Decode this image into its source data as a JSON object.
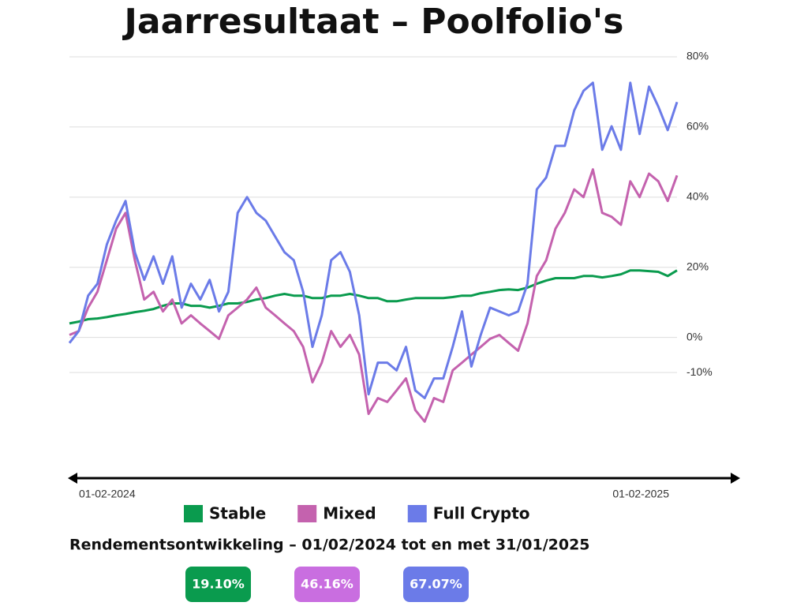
{
  "chart_data": {
    "type": "line",
    "title": "Jaarresultaat – Poolfolio's",
    "subtitle": "Rendementsontwikkeling – 01/02/2024 tot en met 31/01/2025",
    "categories": [
      "01-02-2024",
      null,
      null,
      null,
      null,
      null,
      null,
      null,
      null,
      null,
      null,
      null,
      null,
      null,
      null,
      null,
      null,
      null,
      null,
      null,
      null,
      null,
      null,
      null,
      null,
      null,
      null,
      null,
      null,
      null,
      null,
      null,
      null,
      null,
      null,
      null,
      null,
      null,
      null,
      null,
      null,
      null,
      null,
      null,
      null,
      null,
      null,
      null,
      null,
      null,
      null,
      null,
      null,
      null,
      null,
      null,
      null,
      null,
      null,
      null,
      null,
      null,
      null,
      null,
      null,
      "01-02-2025"
    ],
    "ylim": [
      -30,
      80
    ],
    "yticks": [
      {
        "value": -10,
        "label": "-10%"
      },
      {
        "value": 0,
        "label": "0%"
      },
      {
        "value": 20,
        "label": "20%"
      },
      {
        "value": 40,
        "label": "40%"
      },
      {
        "value": 60,
        "label": "60%"
      },
      {
        "value": 80,
        "label": "80%"
      }
    ],
    "grid": true,
    "series": [
      {
        "name": "Stable",
        "color": "#0a9b4e",
        "values": [
          4.0,
          4.5,
          5.2,
          5.4,
          5.8,
          6.3,
          6.7,
          7.2,
          7.6,
          8.1,
          9.0,
          9.7,
          9.7,
          9.0,
          9.0,
          8.5,
          9.0,
          9.7,
          9.7,
          10.1,
          10.8,
          11.2,
          11.9,
          12.4,
          11.9,
          11.9,
          11.2,
          11.2,
          11.9,
          11.9,
          12.4,
          11.9,
          11.2,
          11.2,
          10.3,
          10.3,
          10.8,
          11.2,
          11.2,
          11.2,
          11.2,
          11.5,
          11.9,
          11.9,
          12.6,
          13.0,
          13.5,
          13.7,
          13.5,
          14.2,
          15.3,
          16.2,
          16.9,
          16.9,
          16.9,
          17.5,
          17.5,
          17.1,
          17.5,
          18.0,
          19.1,
          19.1,
          18.9,
          18.7,
          17.5,
          19.1
        ]
      },
      {
        "name": "Mixed",
        "color": "#c462ae",
        "values": [
          0.7,
          1.8,
          8.5,
          13.0,
          22.0,
          31.0,
          35.5,
          22.0,
          10.8,
          13.0,
          7.4,
          10.8,
          4.0,
          6.3,
          4.0,
          1.8,
          -0.4,
          6.3,
          8.5,
          10.8,
          14.2,
          8.5,
          6.3,
          4.0,
          1.8,
          -2.7,
          -12.8,
          -7.2,
          1.8,
          -2.7,
          0.7,
          -4.9,
          -21.8,
          -17.3,
          -18.4,
          -15.1,
          -11.7,
          -20.7,
          -24.0,
          -17.3,
          -18.4,
          -9.4,
          -7.2,
          -4.9,
          -2.7,
          -0.4,
          0.7,
          -1.6,
          -3.8,
          4.0,
          17.5,
          22.0,
          31.0,
          35.5,
          42.2,
          40.0,
          47.9,
          35.5,
          34.4,
          32.1,
          44.5,
          40.0,
          46.7,
          44.5,
          38.9,
          46.2
        ]
      },
      {
        "name": "Full Crypto",
        "color": "#6b7be8",
        "values": [
          -1.6,
          1.8,
          11.9,
          15.3,
          26.5,
          33.3,
          38.9,
          24.3,
          16.4,
          23.1,
          15.3,
          23.1,
          8.5,
          15.3,
          10.8,
          16.4,
          7.4,
          13.0,
          35.5,
          40.0,
          35.5,
          33.3,
          28.8,
          24.3,
          22.0,
          13.0,
          -2.7,
          6.3,
          22.0,
          24.3,
          18.7,
          6.3,
          -16.2,
          -7.2,
          -7.2,
          -9.4,
          -2.7,
          -15.1,
          -17.3,
          -11.7,
          -11.7,
          -2.7,
          7.4,
          -8.3,
          0.7,
          8.5,
          7.4,
          6.3,
          7.4,
          15.3,
          42.2,
          45.6,
          54.6,
          54.6,
          64.7,
          70.3,
          72.6,
          53.5,
          60.2,
          53.5,
          72.6,
          58.0,
          71.5,
          65.8,
          59.1,
          67.1
        ]
      }
    ],
    "badges": [
      {
        "label": "19.10%",
        "color": "#0a9b4e"
      },
      {
        "label": "46.16%",
        "color": "#c96ee0"
      },
      {
        "label": "67.07%",
        "color": "#6b7be8"
      }
    ]
  }
}
